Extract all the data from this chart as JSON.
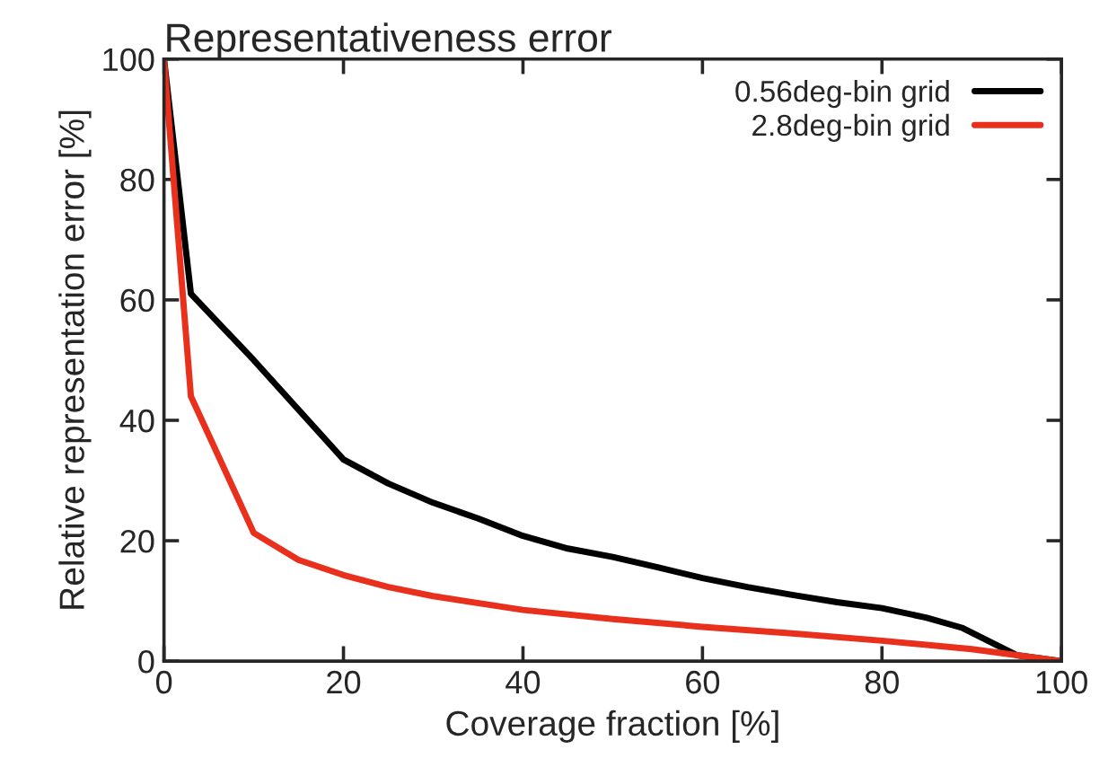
{
  "chart_data": {
    "type": "line",
    "title": "Representativeness error",
    "xlabel": "Coverage fraction [%]",
    "ylabel": "Relative representation error [%]",
    "xlim": [
      0,
      100
    ],
    "ylim": [
      0,
      100
    ],
    "xticks": [
      0,
      20,
      40,
      60,
      80,
      100
    ],
    "yticks": [
      0,
      20,
      40,
      60,
      80,
      100
    ],
    "grid": false,
    "legend": "top right",
    "marker": "none",
    "line_style": "solid",
    "series": [
      {
        "name": "0.56deg-bin grid",
        "color": "#000000",
        "x": [
          0,
          3,
          10,
          20,
          25,
          30,
          35,
          40,
          45,
          50,
          55,
          60,
          65,
          70,
          75,
          80,
          85,
          89,
          95,
          100
        ],
        "values": [
          100,
          61,
          50,
          33.5,
          29.5,
          26.3,
          23.7,
          20.8,
          18.7,
          17.3,
          15.6,
          13.8,
          12.3,
          11,
          9.8,
          8.8,
          7.2,
          5.5,
          1,
          0
        ]
      },
      {
        "name": "2.8deg-bin grid",
        "color": "#e8301c",
        "x": [
          0,
          3,
          10,
          15,
          20,
          25,
          30,
          40,
          50,
          60,
          70,
          80,
          90,
          100
        ],
        "values": [
          100,
          44,
          21.3,
          16.8,
          14.3,
          12.3,
          10.8,
          8.5,
          7,
          5.7,
          4.6,
          3.4,
          2.0,
          0
        ]
      }
    ]
  }
}
